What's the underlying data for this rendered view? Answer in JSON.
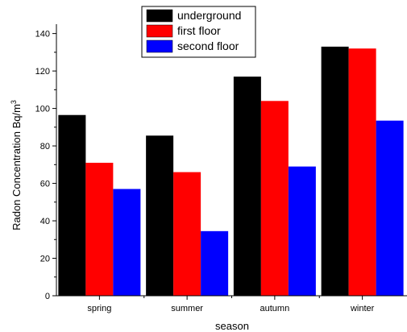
{
  "chart_data": {
    "type": "bar",
    "categories": [
      "spring",
      "summer",
      "autumn",
      "winter"
    ],
    "series": [
      {
        "name": "underground",
        "color": "#000000",
        "values": [
          96.5,
          85.5,
          117,
          133
        ]
      },
      {
        "name": "first floor",
        "color": "#ff0000",
        "values": [
          71,
          66,
          104,
          132
        ]
      },
      {
        "name": "second floor",
        "color": "#0000ff",
        "values": [
          57,
          34.5,
          69,
          93.5
        ]
      }
    ],
    "title": "",
    "xlabel": "season",
    "ylabel": "Radon Concentration Bq/m",
    "ylabel_superscript": "3",
    "ylim": [
      0,
      145
    ],
    "yticks": [
      0,
      20,
      40,
      60,
      80,
      100,
      120,
      140
    ],
    "grid": false,
    "legend_position": "top-center"
  }
}
